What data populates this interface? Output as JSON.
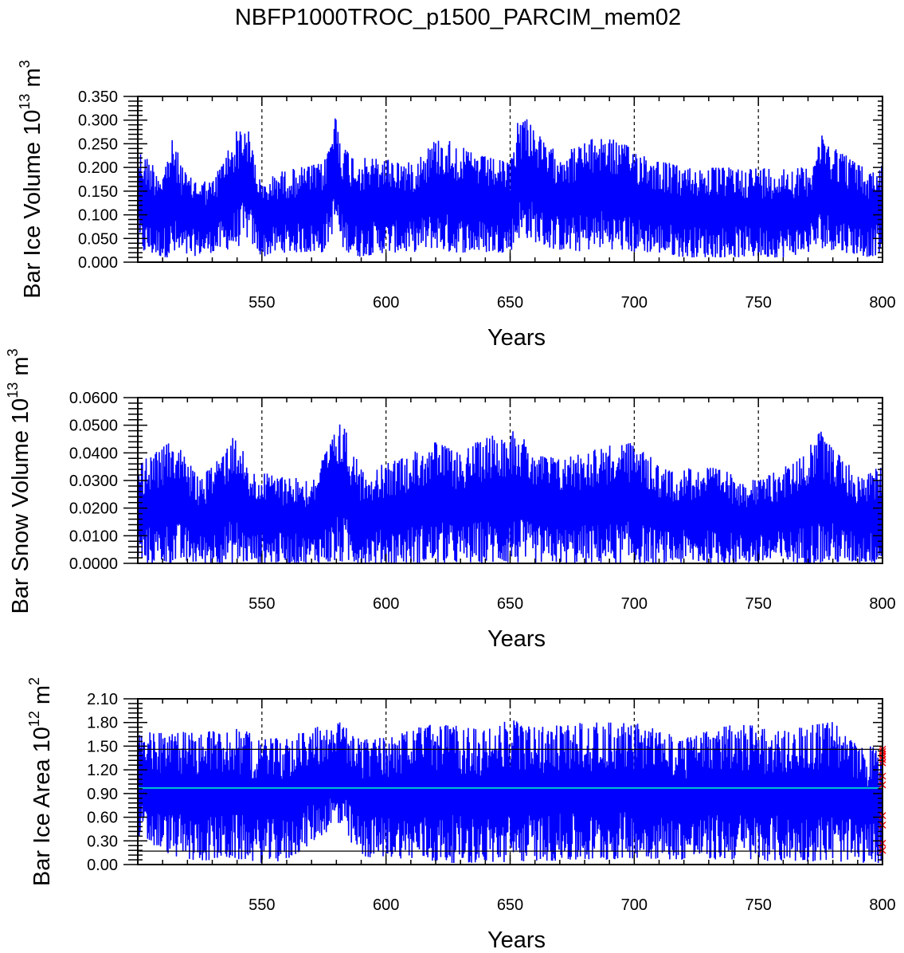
{
  "title": "NBFP1000TROC_p1500_PARCIM_mem02",
  "colors": {
    "series": "#0000ff",
    "mean": "#00cccc",
    "marker": "#ff0000",
    "frame": "#000000"
  },
  "chart_data": [
    {
      "type": "line",
      "name": "ice-volume",
      "title": "NBFP1000TROC_p1500_PARCIM_mem02",
      "xlabel": "Years",
      "ylabel": {
        "text": "Bar Ice Volume 10",
        "exp": "13",
        "unit": " m",
        "unit_exp": "3"
      },
      "xlim": [
        500,
        800
      ],
      "ylim": [
        0,
        0.35
      ],
      "xticks": [
        "550",
        "600",
        "650",
        "700",
        "750",
        "800"
      ],
      "yticks": [
        "0.000",
        "0.050",
        "0.100",
        "0.150",
        "0.200",
        "0.250",
        "0.300",
        "0.350"
      ],
      "dashed_x_lines": [
        550,
        600,
        650,
        700,
        750
      ],
      "envelope_years": [
        500,
        510,
        514,
        520,
        530,
        540,
        544,
        550,
        556,
        565,
        575,
        580,
        582,
        588,
        600,
        610,
        620,
        625,
        635,
        650,
        653,
        657,
        665,
        675,
        687,
        700,
        708,
        720,
        735,
        750,
        760,
        770,
        775,
        785,
        795,
        800
      ],
      "envelope_max": [
        0.24,
        0.19,
        0.26,
        0.18,
        0.17,
        0.28,
        0.29,
        0.16,
        0.19,
        0.2,
        0.21,
        0.32,
        0.25,
        0.22,
        0.22,
        0.21,
        0.26,
        0.26,
        0.23,
        0.21,
        0.3,
        0.31,
        0.24,
        0.24,
        0.27,
        0.24,
        0.22,
        0.2,
        0.2,
        0.2,
        0.2,
        0.2,
        0.27,
        0.23,
        0.19,
        0.21
      ],
      "envelope_min": [
        0.02,
        0.01,
        0.01,
        0.01,
        0.02,
        0.03,
        0.05,
        0.01,
        0.02,
        0.02,
        0.02,
        0.08,
        0.03,
        0.01,
        0.02,
        0.02,
        0.03,
        0.02,
        0.02,
        0.02,
        0.05,
        0.05,
        0.03,
        0.02,
        0.03,
        0.02,
        0.02,
        0.01,
        0.01,
        0.01,
        0.01,
        0.02,
        0.03,
        0.02,
        0.01,
        0.02
      ]
    },
    {
      "type": "line",
      "name": "snow-volume",
      "xlabel": "Years",
      "ylabel": {
        "text": "Bar Snow Volume 10",
        "exp": "13",
        "unit": " m",
        "unit_exp": "3"
      },
      "xlim": [
        500,
        800
      ],
      "ylim": [
        0,
        0.06
      ],
      "xticks": [
        "550",
        "600",
        "650",
        "700",
        "750",
        "800"
      ],
      "yticks": [
        "0.0000",
        "0.0100",
        "0.0200",
        "0.0300",
        "0.0400",
        "0.0500",
        "0.0600"
      ],
      "dashed_x_lines": [
        550,
        600,
        650,
        700,
        750
      ],
      "envelope_years": [
        500,
        515,
        525,
        540,
        545,
        560,
        570,
        582,
        590,
        600,
        620,
        630,
        640,
        652,
        660,
        670,
        685,
        700,
        712,
        730,
        750,
        765,
        775,
        790,
        800
      ],
      "envelope_max": [
        0.036,
        0.045,
        0.03,
        0.048,
        0.033,
        0.032,
        0.03,
        0.052,
        0.034,
        0.036,
        0.044,
        0.04,
        0.046,
        0.049,
        0.04,
        0.038,
        0.042,
        0.044,
        0.034,
        0.035,
        0.03,
        0.037,
        0.048,
        0.032,
        0.035
      ],
      "envelope_min": [
        0.0,
        0.0,
        0.0,
        0.0,
        0.0,
        0.0,
        0.0,
        0.0,
        0.0,
        0.0,
        0.0,
        0.0,
        0.0,
        0.0,
        0.0,
        0.0,
        0.0,
        0.0,
        0.0,
        0.0,
        0.0,
        0.0,
        0.0,
        0.0,
        0.0
      ]
    },
    {
      "type": "line",
      "name": "ice-area",
      "xlabel": "Years",
      "ylabel": {
        "text": "Bar Ice Area 10",
        "exp": "12",
        "unit": " m",
        "unit_exp": "2"
      },
      "xlim": [
        500,
        800
      ],
      "ylim": [
        0,
        2.1
      ],
      "xticks": [
        "550",
        "600",
        "650",
        "700",
        "750",
        "800"
      ],
      "yticks": [
        "0.00",
        "0.30",
        "0.60",
        "0.90",
        "1.20",
        "1.50",
        "1.80",
        "2.10"
      ],
      "dashed_x_lines": [
        550,
        600,
        650,
        700,
        750
      ],
      "reference_lines": {
        "mean": 0.97,
        "upper": 1.46,
        "lower": 0.17
      },
      "markers": {
        "x": 800,
        "values": [
          1.46,
          1.43,
          1.4,
          1.37,
          1.33,
          1.29,
          1.12,
          1.01,
          0.62,
          0.5,
          0.27,
          0.18
        ]
      },
      "envelope_years": [
        500,
        520,
        540,
        550,
        560,
        580,
        590,
        600,
        620,
        640,
        650,
        660,
        680,
        700,
        720,
        740,
        760,
        780,
        790,
        800
      ],
      "envelope_max": [
        1.68,
        1.68,
        1.74,
        1.6,
        1.62,
        1.84,
        1.58,
        1.62,
        1.8,
        1.7,
        1.84,
        1.74,
        1.8,
        1.8,
        1.6,
        1.8,
        1.7,
        1.82,
        1.5,
        1.5
      ],
      "envelope_min": [
        0.3,
        0.04,
        0.06,
        0.02,
        0.04,
        0.5,
        0.08,
        0.1,
        0.02,
        0.02,
        0.02,
        0.05,
        0.03,
        0.08,
        0.06,
        0.06,
        0.04,
        0.04,
        0.02,
        0.02
      ]
    }
  ]
}
